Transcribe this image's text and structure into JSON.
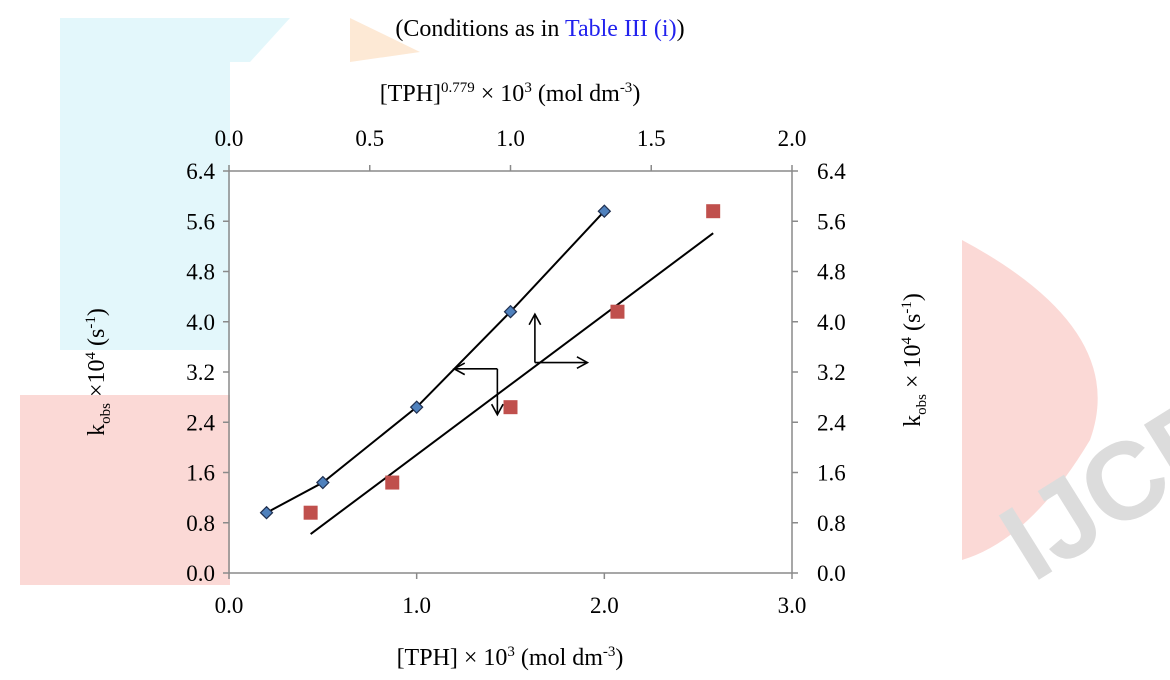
{
  "caption": {
    "prefix": "(Conditions as in ",
    "reference": "Table III (i)",
    "suffix": ")"
  },
  "colors": {
    "series_diamond": "#4f81bd",
    "series_square": "#c0504d",
    "watermark_cyan": "#e3f7fb",
    "watermark_orange": "#fde9d5",
    "watermark_red": "#fbd9d6",
    "watermark_gray": "#dcdcdc"
  },
  "watermark": "IJCRT",
  "chart_data": {
    "type": "scatter",
    "x_bottom": {
      "label": {
        "main": "[TPH] × 10",
        "sup": "3",
        "unit": " (mol dm",
        "unit_sup": "-3",
        "end": ")"
      },
      "range": [
        0,
        3
      ],
      "ticks": [
        "0.0",
        "1.0",
        "2.0",
        "3.0"
      ]
    },
    "x_top": {
      "label": {
        "main": "[TPH]",
        "sup": "0.779",
        "mid": " × 10",
        "sup2": "3",
        "unit": " (mol dm",
        "unit_sup": "-3",
        "end": ")"
      },
      "range": [
        0,
        2
      ],
      "ticks": [
        "0.0",
        "0.5",
        "1.0",
        "1.5",
        "2.0"
      ]
    },
    "y_left": {
      "label": {
        "k": "k",
        "sub": "obs",
        "mid": " ×10",
        "sup": "4",
        "unit": " (s",
        "unit_sup": "-1",
        "end": ")"
      },
      "range": [
        0,
        6.4
      ],
      "ticks": [
        "0.0",
        "0.8",
        "1.6",
        "2.4",
        "3.2",
        "4.0",
        "4.8",
        "5.6",
        "6.4"
      ]
    },
    "y_right": {
      "label": {
        "k": "k",
        "sub": "obs",
        "mid": " × 10",
        "sup": "4",
        "unit": " (s",
        "unit_sup": "-1",
        "end": ")"
      },
      "range": [
        0,
        6.4
      ],
      "ticks": [
        "0.0",
        "0.8",
        "1.6",
        "2.4",
        "3.2",
        "4.0",
        "4.8",
        "5.6",
        "6.4"
      ]
    },
    "series": [
      {
        "axis": "bottom",
        "marker": "diamond",
        "points": [
          [
            0.2,
            0.96
          ],
          [
            0.5,
            1.44
          ],
          [
            1.0,
            2.64
          ],
          [
            1.5,
            4.16
          ],
          [
            2.0,
            5.76
          ]
        ]
      },
      {
        "axis": "top",
        "marker": "square",
        "points": [
          [
            0.29,
            0.96
          ],
          [
            0.58,
            1.44
          ],
          [
            1.0,
            2.64
          ],
          [
            1.38,
            4.16
          ],
          [
            1.72,
            5.76
          ]
        ],
        "fit_line": [
          [
            0.29,
            0.62
          ],
          [
            1.72,
            5.41
          ]
        ]
      }
    ],
    "arrows": [
      {
        "horizontal_from": [
          1.43,
          3.25
        ],
        "horizontal_to": [
          1.2,
          3.25
        ],
        "vertical_to": [
          1.43,
          2.52
        ],
        "meaning": "diamond series uses bottom and left axes"
      },
      {
        "origin": [
          1.63,
          3.35
        ],
        "up_to": [
          1.63,
          4.12
        ],
        "right_to": [
          1.91,
          3.35
        ],
        "meaning": "square series uses top and right axes"
      }
    ],
    "grid": false,
    "legend": "none"
  }
}
